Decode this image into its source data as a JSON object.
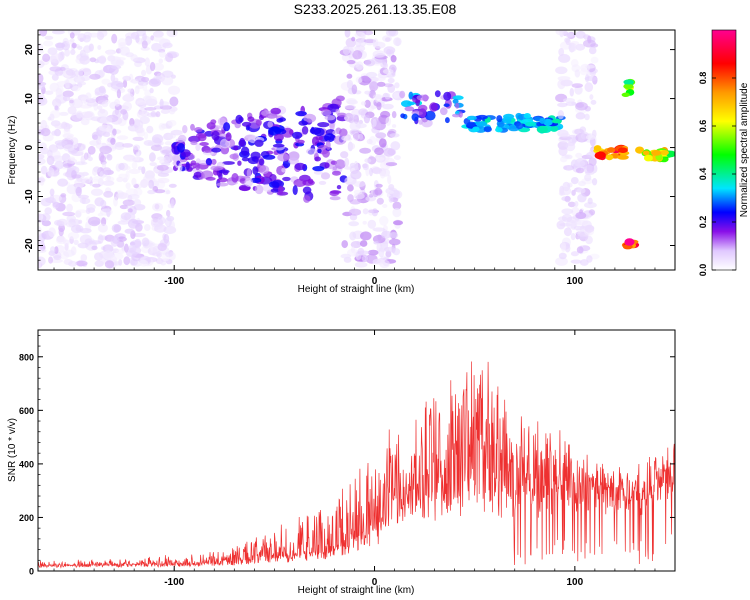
{
  "figure_title": "S233.2025.261.13.35.E08",
  "colors": {
    "snr_line": "#ee3030",
    "axis": "#000000",
    "background": "#ffffff"
  },
  "chart_data": [
    {
      "type": "heatmap",
      "name": "spectrogram",
      "title": "",
      "xlabel": "Height of straight line (km)",
      "ylabel": "Frequency (Hz)",
      "xlim": [
        -168,
        150
      ],
      "ylim": [
        -25,
        24
      ],
      "xticks": [
        -100,
        0,
        100
      ],
      "yticks": [
        -20,
        -10,
        0,
        10,
        20
      ],
      "colorbar": {
        "label": "Normalized spectral amplitude",
        "range": [
          0,
          1
        ],
        "ticks": [
          0.0,
          0.2,
          0.4,
          0.6,
          0.8
        ],
        "colormap": [
          "#ffffff",
          "#e6d3ff",
          "#7a00e0",
          "#0000ff",
          "#00e5ff",
          "#00ff00",
          "#ffff00",
          "#ff9900",
          "#ff0000",
          "#ff0090"
        ]
      },
      "features": [
        {
          "label": "background noise",
          "x_range": [
            -168,
            -100
          ],
          "freq_center": 0,
          "freq_width": 48,
          "amplitude": 0.1
        },
        {
          "label": "broadband cone",
          "x_range": [
            -100,
            -15
          ],
          "freq_center": -1,
          "freq_width": 16,
          "amplitude": 0.25
        },
        {
          "label": "noise band",
          "x_range": [
            -15,
            12
          ],
          "freq_center": 0,
          "freq_width": 48,
          "amplitude": 0.12
        },
        {
          "label": "tonal 8 Hz",
          "x_range": [
            12,
            45
          ],
          "freq_center": 8,
          "freq_width": 6,
          "amplitude": 0.35
        },
        {
          "label": "tonal 5 Hz",
          "x_range": [
            45,
            93
          ],
          "freq_center": 5,
          "freq_width": 3,
          "amplitude": 0.45
        },
        {
          "label": "noise band",
          "x_range": [
            93,
            110
          ],
          "freq_center": 0,
          "freq_width": 48,
          "amplitude": 0.1
        },
        {
          "label": "tonal -1 Hz",
          "x_range": [
            111,
            125
          ],
          "freq_center": -1,
          "freq_width": 2,
          "amplitude": 0.9
        },
        {
          "label": "spot 12 Hz",
          "x_range": [
            125,
            128
          ],
          "freq_center": 12,
          "freq_width": 3,
          "amplitude": 0.6
        },
        {
          "label": "spot -20 Hz",
          "x_range": [
            126,
            130
          ],
          "freq_center": -20,
          "freq_width": 1.5,
          "amplitude": 0.95
        },
        {
          "label": "tonal -1.5 Hz",
          "x_range": [
            132,
            148
          ],
          "freq_center": -1.5,
          "freq_width": 2,
          "amplitude": 0.7
        }
      ]
    },
    {
      "type": "line",
      "name": "snr",
      "title": "",
      "xlabel": "Height of straight line (km)",
      "ylabel": "SNR (10 * v/v)",
      "xlim": [
        -168,
        150
      ],
      "ylim": [
        0,
        900
      ],
      "xticks": [
        -100,
        0,
        100
      ],
      "yticks": [
        0,
        200,
        400,
        600,
        800
      ],
      "series": [
        {
          "name": "SNR",
          "color": "#ee3030",
          "envelope_x": [
            -168,
            -120,
            -100,
            -80,
            -60,
            -40,
            -20,
            -10,
            0,
            10,
            20,
            30,
            40,
            50,
            60,
            70,
            80,
            90,
            100,
            110,
            120,
            125,
            130,
            140,
            150
          ],
          "envelope_base": [
            20,
            22,
            25,
            30,
            40,
            55,
            80,
            110,
            150,
            230,
            280,
            300,
            320,
            330,
            320,
            310,
            320,
            330,
            340,
            350,
            350,
            340,
            320,
            370,
            440
          ],
          "envelope_peak": [
            40,
            45,
            60,
            80,
            130,
            200,
            280,
            380,
            480,
            550,
            650,
            700,
            760,
            880,
            780,
            650,
            600,
            550,
            470,
            440,
            430,
            420,
            440,
            470,
            490
          ]
        }
      ]
    }
  ]
}
